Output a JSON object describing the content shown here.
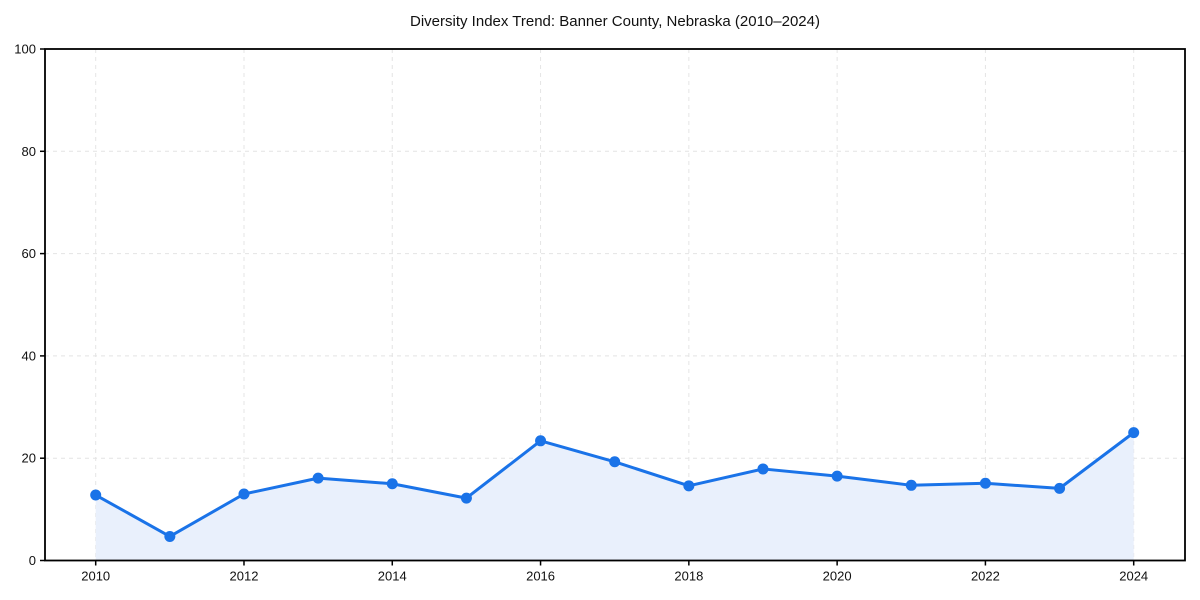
{
  "chart_data": {
    "type": "line",
    "title": "Diversity Index Trend: Banner County, Nebraska (2010–2024)",
    "x": [
      2010,
      2011,
      2012,
      2013,
      2014,
      2015,
      2016,
      2017,
      2018,
      2019,
      2020,
      2021,
      2022,
      2023,
      2024
    ],
    "series": [
      {
        "name": "Diversity Index",
        "values": [
          12.8,
          4.7,
          13.0,
          16.1,
          15.0,
          12.2,
          23.4,
          19.3,
          14.6,
          17.9,
          16.5,
          14.7,
          15.1,
          14.1,
          25.0
        ]
      }
    ],
    "area_fill": true,
    "markers": true,
    "xlabel": "",
    "ylabel": "",
    "ylim": [
      0,
      100
    ],
    "yticks": [
      0,
      20,
      40,
      60,
      80,
      100
    ],
    "xticks": [
      2010,
      2012,
      2014,
      2016,
      2018,
      2020,
      2022,
      2024
    ],
    "grid": "dashed",
    "legend_position": "none",
    "colors": {
      "line": "#1a73e8",
      "marker": "#1a73e8",
      "area": "#e9f0fc",
      "grid": "#e4e4e4",
      "frame": "#000000",
      "text": "#111111",
      "background": "#ffffff"
    }
  }
}
